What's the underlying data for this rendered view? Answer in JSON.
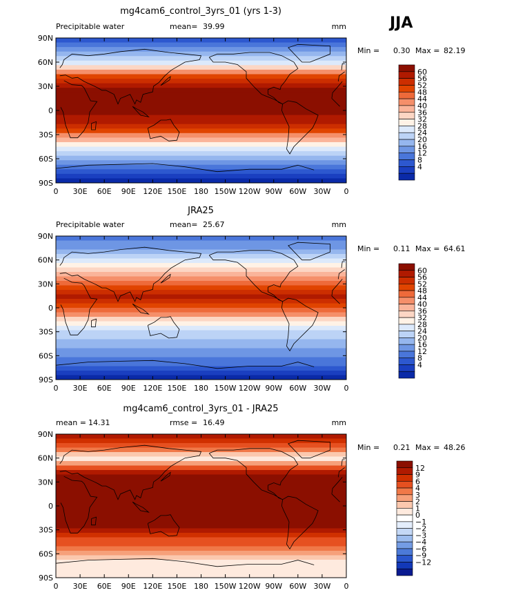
{
  "figure": {
    "season": "JJA"
  },
  "chart_data": [
    {
      "type": "heatmap",
      "title": "mg4cam6_control_3yrs_01 (yrs 1-3)",
      "left_label": "Precipitable water",
      "stat1_label": "mean=",
      "stat1_value": "39.99",
      "units": "mm",
      "min_label": "Min =",
      "min_value": "0.30",
      "max_label": "Max =",
      "max_value": "82.19",
      "lat_ticks": [
        "90N",
        "60N",
        "30N",
        "0",
        "30S",
        "60S",
        "90S"
      ],
      "lon_ticks": [
        "0",
        "30E",
        "60E",
        "90E",
        "120E",
        "150E",
        "180",
        "150W",
        "120W",
        "90W",
        "60W",
        "30W",
        "0"
      ],
      "colorbar_levels": [
        "60",
        "56",
        "52",
        "48",
        "44",
        "40",
        "36",
        "32",
        "28",
        "24",
        "20",
        "16",
        "12",
        "8",
        "4"
      ],
      "colorbar_colors": [
        "#8b0f00",
        "#b01a00",
        "#cc2e00",
        "#e04400",
        "#ee6a3a",
        "#f58f6a",
        "#fab49a",
        "#fcd6c4",
        "#fff2e6",
        "#dce9fb",
        "#bcd3f6",
        "#95b6ee",
        "#6e96e4",
        "#4a76da",
        "#2d58cf",
        "#1a3fc0",
        "#0a2aa8"
      ]
    },
    {
      "type": "heatmap",
      "title": "JRA25",
      "left_label": "Precipitable water",
      "stat1_label": "mean=",
      "stat1_value": "25.67",
      "units": "mm",
      "min_label": "Min =",
      "min_value": "0.11",
      "max_label": "Max =",
      "max_value": "64.61",
      "lat_ticks": [
        "90N",
        "60N",
        "30N",
        "0",
        "30S",
        "60S",
        "90S"
      ],
      "lon_ticks": [
        "0",
        "30E",
        "60E",
        "90E",
        "120E",
        "150E",
        "180",
        "150W",
        "120W",
        "90W",
        "60W",
        "30W",
        "0"
      ],
      "colorbar_levels": [
        "60",
        "56",
        "52",
        "48",
        "44",
        "40",
        "36",
        "32",
        "28",
        "24",
        "20",
        "16",
        "12",
        "8",
        "4"
      ],
      "colorbar_colors": [
        "#8b0f00",
        "#b01a00",
        "#cc2e00",
        "#e04400",
        "#ee6a3a",
        "#f58f6a",
        "#fab49a",
        "#fcd6c4",
        "#fff2e6",
        "#dce9fb",
        "#bcd3f6",
        "#95b6ee",
        "#6e96e4",
        "#4a76da",
        "#2d58cf",
        "#1a3fc0",
        "#0a2aa8"
      ]
    },
    {
      "type": "heatmap",
      "title": "mg4cam6_control_3yrs_01 - JRA25",
      "left_label": "mean =",
      "left_value": "14.31",
      "stat1_label": "rmse =",
      "stat1_value": "16.49",
      "units": "mm",
      "min_label": "Min =",
      "min_value": "0.21",
      "max_label": "Max =",
      "max_value": "48.26",
      "lat_ticks": [
        "90N",
        "60N",
        "30N",
        "0",
        "30S",
        "60S",
        "90S"
      ],
      "lon_ticks": [
        "0",
        "30E",
        "60E",
        "90E",
        "120E",
        "150E",
        "180",
        "150W",
        "120W",
        "90W",
        "60W",
        "30W",
        "0"
      ],
      "colorbar_levels": [
        "12",
        "9",
        "6",
        "4",
        "3",
        "2",
        "1",
        "0",
        "−1",
        "−2",
        "−3",
        "−4",
        "−6",
        "−9",
        "−12"
      ],
      "colorbar_colors": [
        "#8b0f00",
        "#b01a00",
        "#d03000",
        "#e65020",
        "#f07848",
        "#f6a07a",
        "#fbc8ae",
        "#feeade",
        "#ffffff",
        "#e4eefc",
        "#c4d8f6",
        "#9cbcee",
        "#749ce4",
        "#4c7ad8",
        "#2a56cc",
        "#1238b8",
        "#0a1a90"
      ]
    }
  ]
}
